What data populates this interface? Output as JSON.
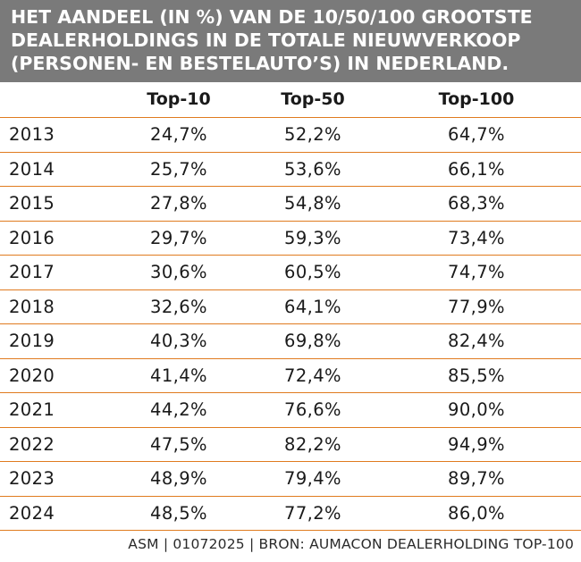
{
  "chart_data": {
    "type": "table",
    "title": "HET AANDEEL (IN %) VAN DE 10/50/100 GROOTSTE DEALERHOLDINGS IN DE TOTALE NIEUWVERKOOP (PERSONEN- EN BESTELAUTO’S) IN NEDERLAND.",
    "title_lines": [
      "HET AANDEEL (IN %) VAN DE 10/50/100 GROOTSTE",
      "DEALERHOLDINGS IN DE TOTALE NIEUWVERKOOP",
      "(PERSONEN- EN BESTELAUTO’S) IN NEDERLAND."
    ],
    "columns": [
      "Top-10",
      "Top-50",
      "Top-100"
    ],
    "rows": [
      {
        "year": "2013",
        "values": [
          "24,7%",
          "52,2%",
          "64,7%"
        ]
      },
      {
        "year": "2014",
        "values": [
          "25,7%",
          "53,6%",
          "66,1%"
        ]
      },
      {
        "year": "2015",
        "values": [
          "27,8%",
          "54,8%",
          "68,3%"
        ]
      },
      {
        "year": "2016",
        "values": [
          "29,7%",
          "59,3%",
          "73,4%"
        ]
      },
      {
        "year": "2017",
        "values": [
          "30,6%",
          "60,5%",
          "74,7%"
        ]
      },
      {
        "year": "2018",
        "values": [
          "32,6%",
          "64,1%",
          "77,9%"
        ]
      },
      {
        "year": "2019",
        "values": [
          "40,3%",
          "69,8%",
          "82,4%"
        ]
      },
      {
        "year": "2020",
        "values": [
          "41,4%",
          "72,4%",
          "85,5%"
        ]
      },
      {
        "year": "2021",
        "values": [
          "44,2%",
          "76,6%",
          "90,0%"
        ]
      },
      {
        "year": "2022",
        "values": [
          "47,5%",
          "82,2%",
          "94,9%"
        ]
      },
      {
        "year": "2023",
        "values": [
          "48,9%",
          "79,4%",
          "89,7%"
        ]
      },
      {
        "year": "2024",
        "values": [
          "48,5%",
          "77,2%",
          "86,0%"
        ]
      }
    ],
    "source": "ASM | 01072025 | BRON: AUMACON DEALERHOLDING TOP-100"
  },
  "colors": {
    "header_bg": "#7a7a7a",
    "rule": "#e07b1f",
    "text": "#1a1a1a"
  }
}
